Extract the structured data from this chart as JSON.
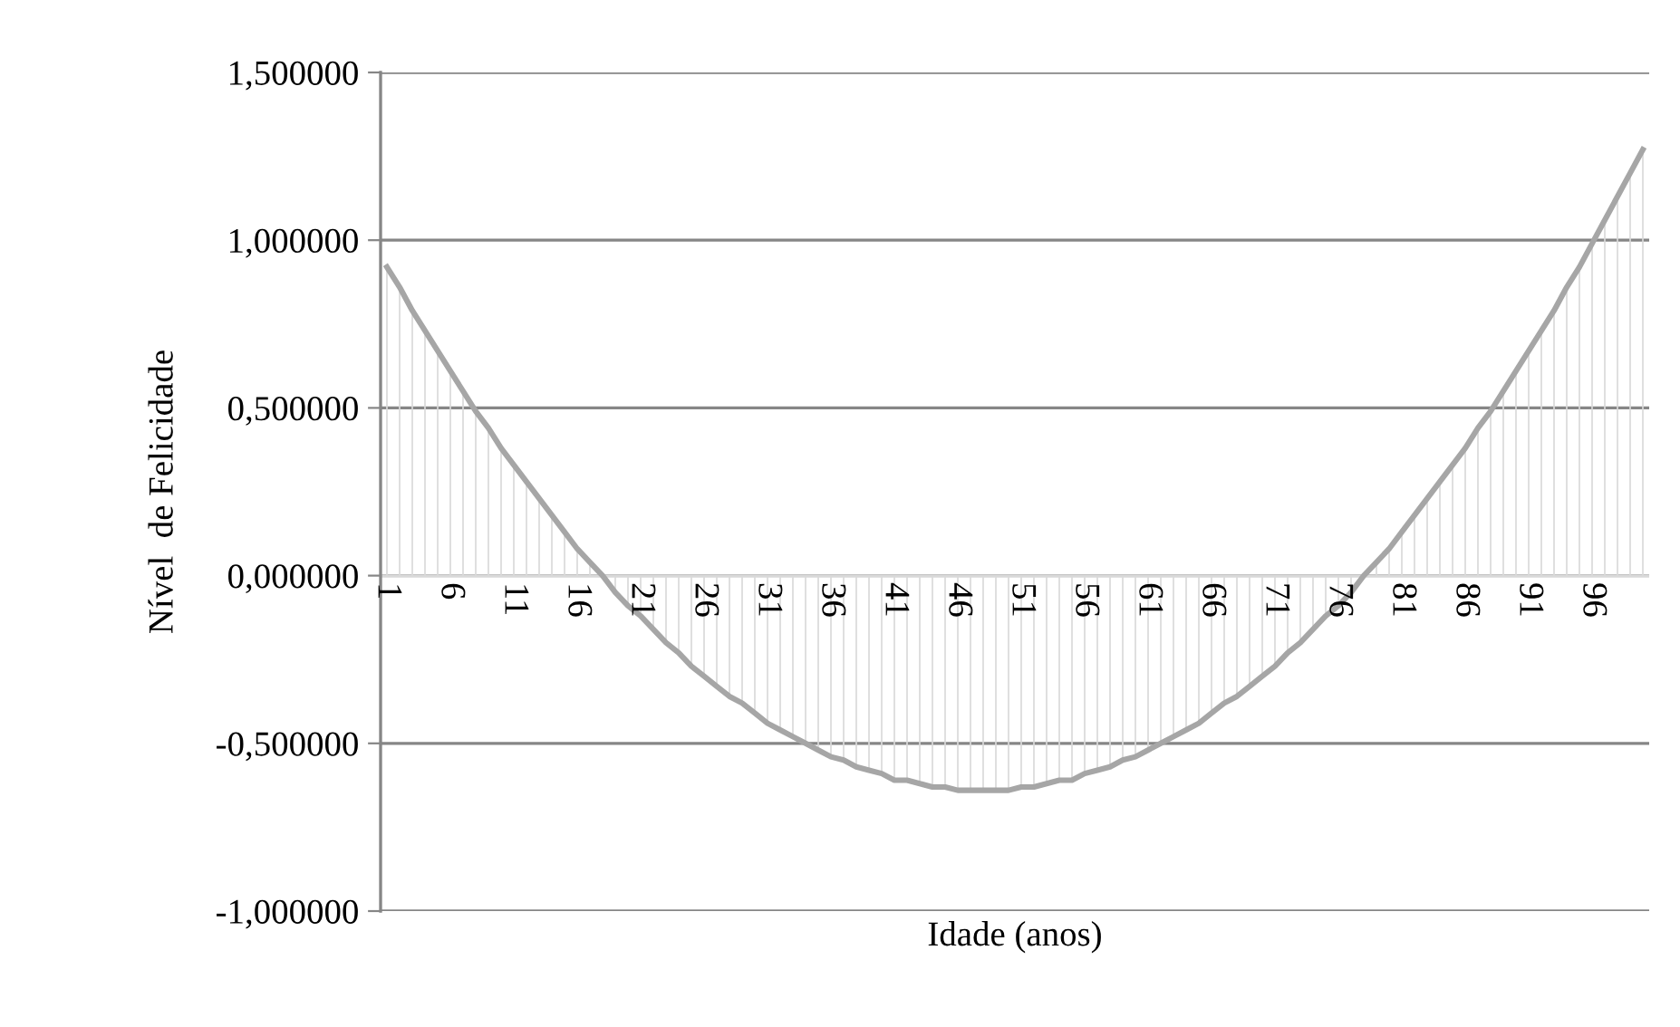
{
  "chart_data": {
    "type": "line",
    "xlabel": "Idade (anos)",
    "ylabel": "Nível  de Felicidade",
    "categories": [
      "1",
      null,
      null,
      null,
      null,
      "6",
      null,
      null,
      null,
      null,
      "11",
      null,
      null,
      null,
      null,
      "16",
      null,
      null,
      null,
      null,
      "21",
      null,
      null,
      null,
      null,
      "26",
      null,
      null,
      null,
      null,
      "31",
      null,
      null,
      null,
      null,
      "36",
      null,
      null,
      null,
      null,
      "41",
      null,
      null,
      null,
      null,
      "46",
      null,
      null,
      null,
      null,
      "51",
      null,
      null,
      null,
      null,
      "56",
      null,
      null,
      null,
      null,
      "61",
      null,
      null,
      null,
      null,
      "66",
      null,
      null,
      null,
      null,
      "71",
      null,
      null,
      null,
      null,
      "76",
      null,
      null,
      null,
      null,
      "81",
      null,
      null,
      null,
      null,
      "86",
      null,
      null,
      null,
      null,
      "91",
      null,
      null,
      null,
      null,
      "96",
      null,
      null,
      null,
      null
    ],
    "series": [
      {
        "type": "bar",
        "color": "#d9d9d9",
        "values": [
          0.92,
          0.86,
          0.79,
          0.73,
          0.67,
          0.61,
          0.55,
          0.49,
          0.44,
          0.38,
          0.33,
          0.28,
          0.23,
          0.18,
          0.13,
          0.08,
          0.04,
          0.0,
          -0.05,
          -0.09,
          -0.12,
          -0.16,
          -0.2,
          -0.23,
          -0.27,
          -0.3,
          -0.33,
          -0.36,
          -0.38,
          -0.41,
          -0.44,
          -0.46,
          -0.48,
          -0.5,
          -0.52,
          -0.54,
          -0.55,
          -0.57,
          -0.58,
          -0.59,
          -0.61,
          -0.61,
          -0.62,
          -0.63,
          -0.63,
          -0.64,
          -0.64,
          -0.64,
          -0.64,
          -0.64,
          -0.63,
          -0.63,
          -0.62,
          -0.61,
          -0.61,
          -0.59,
          -0.58,
          -0.57,
          -0.55,
          -0.54,
          -0.52,
          -0.5,
          -0.48,
          -0.46,
          -0.44,
          -0.41,
          -0.38,
          -0.36,
          -0.33,
          -0.3,
          -0.27,
          -0.23,
          -0.2,
          -0.16,
          -0.12,
          -0.09,
          -0.05,
          0.0,
          0.04,
          0.08,
          0.13,
          0.18,
          0.23,
          0.28,
          0.33,
          0.38,
          0.44,
          0.49,
          0.55,
          0.61,
          0.67,
          0.73,
          0.79,
          0.86,
          0.92,
          0.99,
          1.06,
          1.13,
          1.2,
          1.27
        ]
      },
      {
        "color": "#a6a6a6",
        "values": [
          0.92,
          0.86,
          0.79,
          0.73,
          0.67,
          0.61,
          0.55,
          0.49,
          0.44,
          0.38,
          0.33,
          0.28,
          0.23,
          0.18,
          0.13,
          0.08,
          0.04,
          0.0,
          -0.05,
          -0.09,
          -0.12,
          -0.16,
          -0.2,
          -0.23,
          -0.27,
          -0.3,
          -0.33,
          -0.36,
          -0.38,
          -0.41,
          -0.44,
          -0.46,
          -0.48,
          -0.5,
          -0.52,
          -0.54,
          -0.55,
          -0.57,
          -0.58,
          -0.59,
          -0.61,
          -0.61,
          -0.62,
          -0.63,
          -0.63,
          -0.64,
          -0.64,
          -0.64,
          -0.64,
          -0.64,
          -0.63,
          -0.63,
          -0.62,
          -0.61,
          -0.61,
          -0.59,
          -0.58,
          -0.57,
          -0.55,
          -0.54,
          -0.52,
          -0.5,
          -0.48,
          -0.46,
          -0.44,
          -0.41,
          -0.38,
          -0.36,
          -0.33,
          -0.3,
          -0.27,
          -0.23,
          -0.2,
          -0.16,
          -0.12,
          -0.09,
          -0.05,
          0.0,
          0.04,
          0.08,
          0.13,
          0.18,
          0.23,
          0.28,
          0.33,
          0.38,
          0.44,
          0.49,
          0.55,
          0.61,
          0.67,
          0.73,
          0.79,
          0.86,
          0.92,
          0.99,
          1.06,
          1.13,
          1.2,
          1.27
        ]
      }
    ],
    "ylim": [
      -1,
      1.5
    ],
    "yticks": [
      {
        "value": -1,
        "label": "-1,000000"
      },
      {
        "value": -0.5,
        "label": "-0,500000"
      },
      {
        "value": 0,
        "label": "0,000000"
      },
      {
        "value": 0.5,
        "label": "0,500000"
      },
      {
        "value": 1,
        "label": "1,000000"
      },
      {
        "value": 1.5,
        "label": "1,500000"
      }
    ],
    "grid": "y",
    "legend": false,
    "marker": "none",
    "line_style": "solid"
  }
}
